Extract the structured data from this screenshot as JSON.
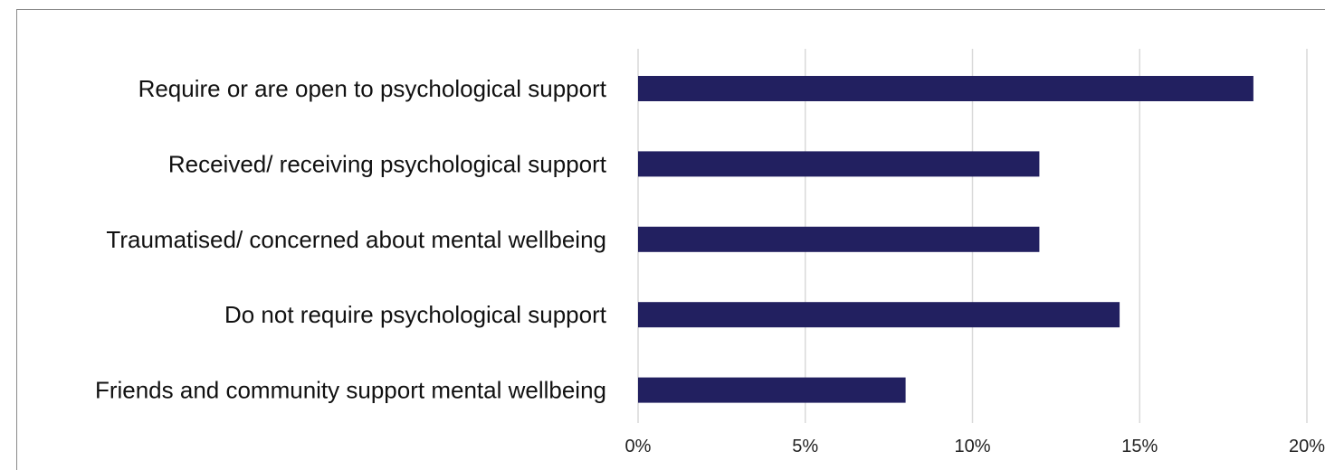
{
  "chart_data": {
    "type": "bar",
    "orientation": "horizontal",
    "title": "",
    "xlabel": "",
    "ylabel": "",
    "categories": [
      "Require or are open to psychological support",
      "Received/ receiving psychological support",
      "Traumatised/ concerned about mental wellbeing",
      "Do not require psychological support",
      "Friends and community support mental wellbeing"
    ],
    "values": [
      18.4,
      12.0,
      12.0,
      14.4,
      8.0
    ],
    "xlim": [
      0,
      20
    ],
    "ticks": [
      0,
      5,
      10,
      15,
      20
    ],
    "tick_labels": [
      "0%",
      "5%",
      "10%",
      "15%",
      "20%"
    ],
    "bar_color": "#222060",
    "grid": true,
    "gridline_color": "#d9d9d9",
    "legend": "none"
  }
}
